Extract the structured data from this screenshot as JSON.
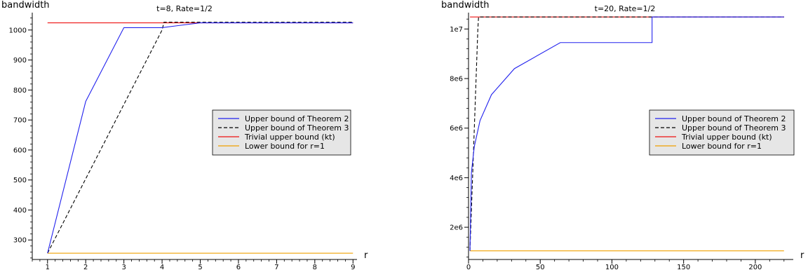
{
  "chart_data": [
    {
      "type": "line",
      "title": "t=8, Rate=1/2",
      "xlabel": "r",
      "ylabel": "bandwidth",
      "xlim": [
        0.6,
        9.05
      ],
      "ylim": [
        235,
        1058
      ],
      "grid": false,
      "legend_position": "center-right",
      "x_ticks": [
        1,
        2,
        3,
        4,
        5,
        6,
        7,
        8,
        9
      ],
      "x_tick_labels": [
        "1",
        "2",
        "3",
        "4",
        "5",
        "6",
        "7",
        "8",
        "9"
      ],
      "y_ticks": [
        300,
        400,
        500,
        600,
        700,
        800,
        900,
        1000
      ],
      "y_tick_labels": [
        "300",
        "400",
        "500",
        "600",
        "700",
        "800",
        "900",
        "1000"
      ],
      "series": [
        {
          "name": "Upper bound of Theorem 2",
          "color": "#2222ee",
          "style": "solid",
          "x": [
            1,
            2,
            3,
            4,
            5,
            9
          ],
          "y": [
            256,
            762,
            1008,
            1008,
            1024,
            1024
          ]
        },
        {
          "name": "Upper bound of Theorem 3",
          "color": "#000000",
          "style": "dashed",
          "x": [
            1,
            4,
            4.05,
            9
          ],
          "y": [
            256,
            1000,
            1026,
            1026
          ]
        },
        {
          "name": "Trivial upper bound (kt)",
          "color": "#ee1111",
          "style": "solid",
          "x": [
            1,
            9
          ],
          "y": [
            1024,
            1024
          ]
        },
        {
          "name": "Lower bound for r=1",
          "color": "#f0a000",
          "style": "solid",
          "x": [
            1,
            9
          ],
          "y": [
            256,
            256
          ]
        }
      ]
    },
    {
      "type": "line",
      "title": "t=20, Rate=1/2",
      "xlabel": "r",
      "ylabel": "bandwidth",
      "xlim": [
        0,
        225
      ],
      "ylim": [
        700000,
        10660000
      ],
      "grid": false,
      "legend_position": "center-right",
      "x_ticks": [
        0,
        50,
        100,
        150,
        200
      ],
      "x_tick_labels": [
        "0",
        "50",
        "100",
        "150",
        "200"
      ],
      "y_ticks": [
        2000000,
        4000000,
        6000000,
        8000000,
        10000000
      ],
      "y_tick_labels": [
        "2e6",
        "4e6",
        "6e6",
        "8e6",
        "1e7"
      ],
      "series": [
        {
          "name": "Upper bound of Theorem 2",
          "color": "#2222ee",
          "style": "solid",
          "x": [
            1,
            2,
            2,
            4,
            4,
            8,
            8,
            16,
            16,
            32,
            32,
            64,
            64,
            128,
            128,
            220
          ],
          "y": [
            1048576,
            4200000,
            4200000,
            5250000,
            5250000,
            6300000,
            6300000,
            7350000,
            7350000,
            8400000,
            8400000,
            9450000,
            9450000,
            9450000,
            10485760,
            10485760
          ]
        },
        {
          "name": "Upper bound of Theorem 3",
          "color": "#000000",
          "style": "dashed",
          "x": [
            1,
            6.5,
            7,
            220
          ],
          "y": [
            1048576,
            10000000,
            10485760,
            10485760
          ]
        },
        {
          "name": "Trivial upper bound (kt)",
          "color": "#ee1111",
          "style": "solid",
          "x": [
            1,
            220
          ],
          "y": [
            10485760,
            10485760
          ]
        },
        {
          "name": "Lower bound for r=1",
          "color": "#f0a000",
          "style": "solid",
          "x": [
            1,
            220
          ],
          "y": [
            1048576,
            1048576
          ]
        }
      ]
    }
  ]
}
